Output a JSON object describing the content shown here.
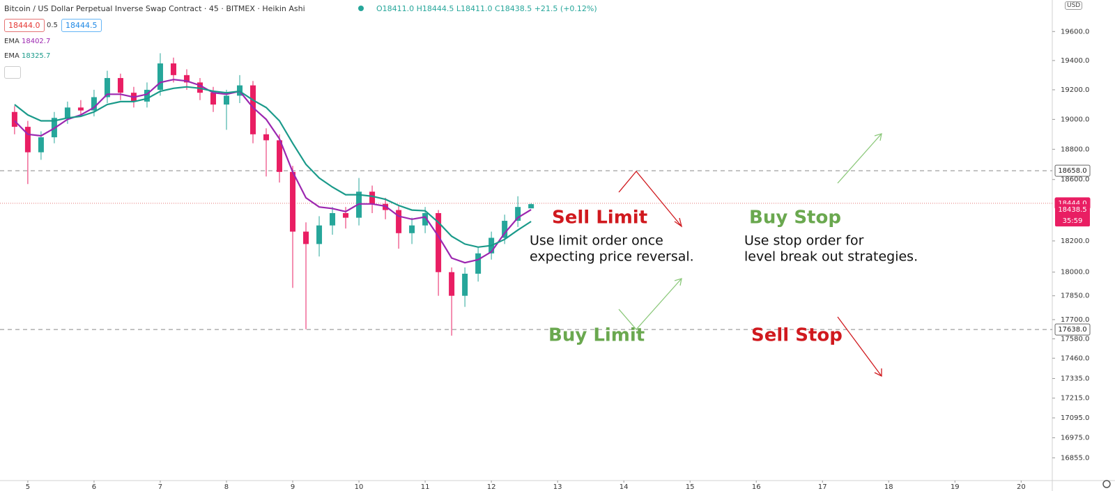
{
  "header": {
    "symbol": "Bitcoin / US Dollar Perpetual Inverse Swap Contract · 45 · BITMEX · Heikin Ashi",
    "ohlc": [
      "O18411.0",
      "H18444.5",
      "L18411.0",
      "C18438.5",
      "+21.5 (+0.12%)"
    ],
    "quote_boxes": [
      "18444.0",
      "0.5",
      "18444.5"
    ],
    "currency": "USD"
  },
  "annotations": {
    "sell_limit": "Sell Limit",
    "buy_stop": "Buy Stop",
    "buy_limit": "Buy Limit",
    "sell_stop": "Sell Stop",
    "limit_note": [
      "Use limit order once",
      "expecting price reversal."
    ],
    "stop_note": [
      "Use stop order for",
      "level break out strategies."
    ]
  },
  "chart_data": {
    "type": "candlestick",
    "x": [
      4.8,
      5.0,
      5.2,
      5.4,
      5.6,
      5.8,
      6.0,
      6.2,
      6.4,
      6.6,
      6.8,
      7.0,
      7.2,
      7.4,
      7.6,
      7.8,
      8.0,
      8.2,
      8.4,
      8.6,
      8.8,
      9.0,
      9.2,
      9.4,
      9.6,
      9.8,
      10.0,
      10.2,
      10.4,
      10.6,
      10.8,
      11.0,
      11.2,
      11.4,
      11.6,
      11.8,
      12.0,
      12.2,
      12.4,
      12.6
    ],
    "open": [
      19050,
      18950,
      18780,
      18880,
      19010,
      19080,
      19060,
      19150,
      19280,
      19180,
      19120,
      19200,
      19380,
      19300,
      19250,
      19180,
      19100,
      19160,
      19230,
      18900,
      18860,
      18650,
      18260,
      18180,
      18300,
      18380,
      18350,
      18520,
      18440,
      18400,
      18250,
      18300,
      18380,
      18000,
      17850,
      17990,
      18120,
      18220,
      18330,
      18411
    ],
    "high": [
      19090,
      18990,
      18920,
      19050,
      19120,
      19130,
      19200,
      19330,
      19310,
      19220,
      19250,
      19450,
      19420,
      19340,
      19280,
      19220,
      19200,
      19300,
      19260,
      18940,
      18900,
      18690,
      18320,
      18360,
      18420,
      18420,
      18610,
      18560,
      18480,
      18430,
      18350,
      18420,
      18400,
      18030,
      18030,
      18160,
      18260,
      18370,
      18490,
      18444.5
    ],
    "low": [
      18900,
      18570,
      18730,
      18840,
      18970,
      19020,
      19020,
      19110,
      19130,
      19080,
      19080,
      19160,
      19250,
      19200,
      19130,
      19050,
      18930,
      19110,
      18840,
      18620,
      18580,
      17900,
      17640,
      18100,
      18240,
      18280,
      18300,
      18380,
      18340,
      18150,
      18180,
      18250,
      17850,
      17600,
      17780,
      17940,
      18080,
      18180,
      18290,
      18411
    ],
    "close": [
      18950,
      18780,
      18880,
      19010,
      19080,
      19060,
      19150,
      19280,
      19180,
      19120,
      19200,
      19380,
      19300,
      19250,
      19180,
      19100,
      19160,
      19230,
      18900,
      18860,
      18650,
      18260,
      18180,
      18300,
      18380,
      18350,
      18520,
      18440,
      18400,
      18250,
      18300,
      18380,
      18000,
      17850,
      17990,
      18120,
      18220,
      18330,
      18420,
      18438.5
    ],
    "up_color": "#26a69a",
    "down_color": "#e91e63",
    "series": [
      {
        "name": "EMA",
        "color": "#9c27b0",
        "values": [
          18990,
          18900,
          18890,
          18940,
          19000,
          19030,
          19080,
          19170,
          19170,
          19150,
          19170,
          19250,
          19270,
          19260,
          19230,
          19180,
          19170,
          19190,
          19080,
          19000,
          18870,
          18650,
          18480,
          18420,
          18410,
          18390,
          18440,
          18440,
          18425,
          18360,
          18340,
          18355,
          18230,
          18090,
          18060,
          18080,
          18130,
          18250,
          18350,
          18402.7
        ]
      },
      {
        "name": "EMA",
        "color": "#1a9a8a",
        "values": [
          19100,
          19030,
          18990,
          18990,
          19010,
          19020,
          19050,
          19100,
          19120,
          19120,
          19140,
          19190,
          19210,
          19220,
          19210,
          19190,
          19180,
          19190,
          19130,
          19080,
          18990,
          18840,
          18700,
          18610,
          18550,
          18500,
          18500,
          18490,
          18470,
          18430,
          18400,
          18395,
          18320,
          18230,
          18180,
          18160,
          18170,
          18210,
          18270,
          18325.7
        ]
      }
    ],
    "xlim": [
      4.58,
      20.47
    ],
    "xticks": [
      5,
      6,
      7,
      8,
      9,
      10,
      11,
      12,
      13,
      14,
      15,
      16,
      17,
      18,
      19,
      20
    ],
    "ylim": [
      16720,
      19820
    ],
    "log_scale": true,
    "yticks": [
      {
        "value": 19600,
        "label": "19600.0"
      },
      {
        "value": 19400,
        "label": "19400.0"
      },
      {
        "value": 19200,
        "label": "19200.0"
      },
      {
        "value": 19000,
        "label": "19000.0"
      },
      {
        "value": 18800,
        "label": "18800.0"
      },
      {
        "value": 18600,
        "label": "18600.0"
      },
      {
        "value": 18200,
        "label": "18200.0"
      },
      {
        "value": 18000,
        "label": "18000.0"
      },
      {
        "value": 17850,
        "label": "17850.0"
      },
      {
        "value": 17700,
        "label": "17700.0"
      },
      {
        "value": 17580,
        "label": "17580.0"
      },
      {
        "value": 17460,
        "label": "17460.0"
      },
      {
        "value": 17335,
        "label": "17335.0"
      },
      {
        "value": 17215,
        "label": "17215.0"
      },
      {
        "value": 17095,
        "label": "17095.0"
      },
      {
        "value": 16975,
        "label": "16975.0"
      },
      {
        "value": 16855,
        "label": "16855.0"
      }
    ],
    "price_lines": [
      {
        "value": 18658,
        "label": "18658.0",
        "style": "dashed"
      },
      {
        "value": 17638,
        "label": "17638.0",
        "style": "dashed"
      },
      {
        "value": 18444,
        "label": "18444.0",
        "style": "dotted"
      }
    ],
    "last_price": {
      "value": 18438.5,
      "label": "18438.5"
    },
    "countdown": "35:59"
  }
}
